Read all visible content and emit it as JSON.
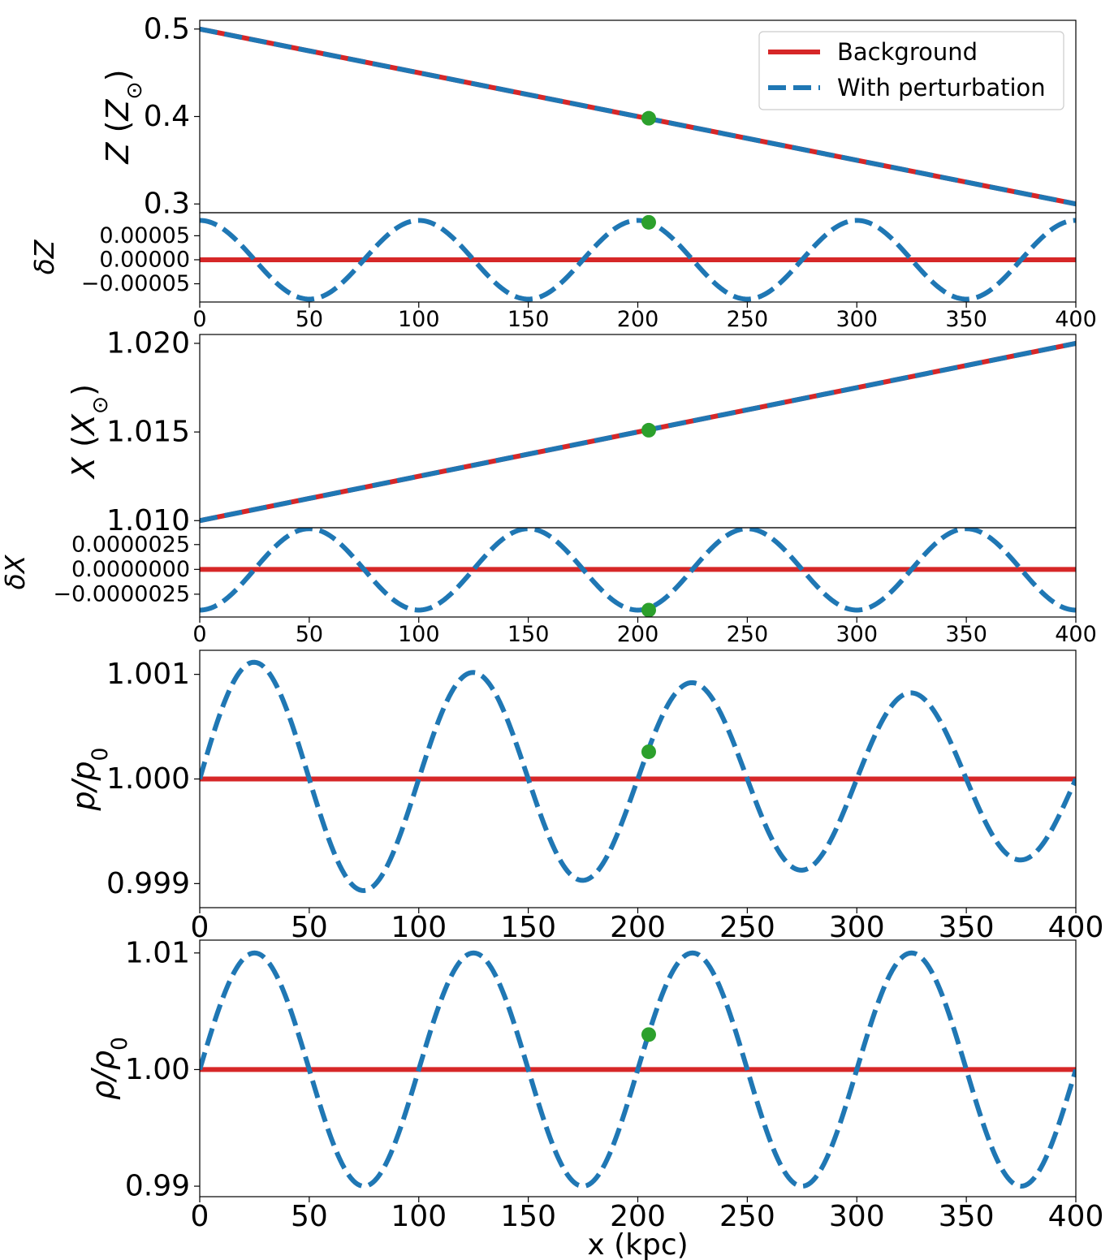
{
  "chart_data": [
    {
      "type": "line",
      "id": "Z",
      "ylabel_parts": [
        {
          "t": "Z",
          "i": true
        },
        {
          "t": " ("
        },
        {
          "t": "Z",
          "i": true
        },
        {
          "t": "⊙",
          "sub": true
        },
        {
          "t": ")"
        }
      ],
      "xlim": [
        0,
        400
      ],
      "ylim": [
        0.29,
        0.51
      ],
      "yticks": [
        0.5,
        0.4,
        0.3
      ],
      "ytick_labels": [
        "0.5",
        "0.4",
        "0.3"
      ],
      "series": [
        {
          "name": "Background",
          "color": "#d62728",
          "style": "solid",
          "x": [
            0,
            400
          ],
          "y": [
            0.5,
            0.3
          ]
        },
        {
          "name": "With perturbation",
          "color": "#1f77b4",
          "style": "dashed",
          "x": [
            0,
            400
          ],
          "y": [
            0.5,
            0.3
          ]
        }
      ],
      "marker": {
        "x": 205,
        "y": 0.398,
        "color": "#2ca02c"
      },
      "legend": {
        "position": "upper right",
        "entries": [
          "Background",
          "With perturbation"
        ]
      }
    },
    {
      "type": "line",
      "id": "dZ",
      "ylabel_parts": [
        {
          "t": "δZ",
          "i": true
        }
      ],
      "xlim": [
        0,
        400
      ],
      "ylim": [
        -8.8e-05,
        9.8e-05
      ],
      "yticks": [
        5e-05,
        0,
        -5e-05
      ],
      "ytick_labels": [
        "0.00005",
        "0.00000",
        "−0.00005"
      ],
      "xticks": [
        0,
        50,
        100,
        150,
        200,
        250,
        300,
        350,
        400
      ],
      "xtick_labels": [
        "0",
        "50",
        "100",
        "150",
        "200",
        "250",
        "300",
        "350",
        "400"
      ],
      "background": {
        "value": 0,
        "color": "#d62728"
      },
      "perturbation": {
        "kind": "cos",
        "amplitude": 8.2e-05,
        "wavelength": 100,
        "offset": 0,
        "color": "#1f77b4"
      },
      "marker": {
        "x": 205,
        "y": 7.8e-05,
        "color": "#2ca02c"
      }
    },
    {
      "type": "line",
      "id": "X",
      "ylabel_parts": [
        {
          "t": "X",
          "i": true
        },
        {
          "t": " ("
        },
        {
          "t": "X",
          "i": true
        },
        {
          "t": "⊙",
          "sub": true
        },
        {
          "t": ")"
        }
      ],
      "xlim": [
        0,
        400
      ],
      "ylim": [
        1.0096,
        1.0205
      ],
      "yticks": [
        1.02,
        1.015,
        1.01
      ],
      "ytick_labels": [
        "1.020",
        "1.015",
        "1.010"
      ],
      "series": [
        {
          "name": "Background",
          "color": "#d62728",
          "style": "solid",
          "x": [
            0,
            400
          ],
          "y": [
            1.01,
            1.02
          ]
        },
        {
          "name": "With perturbation",
          "color": "#1f77b4",
          "style": "dashed",
          "x": [
            0,
            400
          ],
          "y": [
            1.01,
            1.02
          ]
        }
      ],
      "marker": {
        "x": 205,
        "y": 1.0151,
        "color": "#2ca02c"
      }
    },
    {
      "type": "line",
      "id": "dX",
      "ylabel_parts": [
        {
          "t": "δX",
          "i": true
        }
      ],
      "xlim": [
        0,
        400
      ],
      "ylim": [
        -4.8e-06,
        4.2e-06
      ],
      "yticks": [
        2.5e-06,
        0,
        -2.5e-06
      ],
      "ytick_labels": [
        "0.0000025",
        "0.0000000",
        "−0.0000025"
      ],
      "xticks": [
        0,
        50,
        100,
        150,
        200,
        250,
        300,
        350,
        400
      ],
      "xtick_labels": [
        "0",
        "50",
        "100",
        "150",
        "200",
        "250",
        "300",
        "350",
        "400"
      ],
      "background": {
        "value": 0,
        "color": "#d62728"
      },
      "perturbation": {
        "kind": "cos",
        "amplitude": -4.1e-06,
        "wavelength": 100,
        "offset": 0,
        "color": "#1f77b4"
      },
      "marker": {
        "x": 205,
        "y": -4.1e-06,
        "color": "#2ca02c"
      }
    },
    {
      "type": "line",
      "id": "p",
      "ylabel_parts": [
        {
          "t": "p/p",
          "i": true
        },
        {
          "t": "0",
          "sub": true
        }
      ],
      "xlim": [
        0,
        400
      ],
      "ylim": [
        0.99877,
        1.00123
      ],
      "yticks": [
        1.001,
        1.0,
        0.999
      ],
      "ytick_labels": [
        "1.001",
        "1.000",
        "0.999"
      ],
      "xticks": [
        0,
        50,
        100,
        150,
        200,
        250,
        300,
        350,
        400
      ],
      "xtick_labels": [
        "0",
        "50",
        "100",
        "150",
        "200",
        "250",
        "300",
        "350",
        "400"
      ],
      "background": {
        "value": 1.0,
        "color": "#d62728"
      },
      "perturbation": {
        "kind": "sin_decay",
        "amplitude": 0.00114,
        "amplitude_end": 0.00075,
        "wavelength": 100,
        "offset": 1.0,
        "color": "#1f77b4"
      },
      "marker": {
        "x": 205,
        "y": 1.00026,
        "color": "#2ca02c"
      }
    },
    {
      "type": "line",
      "id": "rho",
      "ylabel_parts": [
        {
          "t": "ρ/ρ",
          "i": true
        },
        {
          "t": "0",
          "sub": true
        }
      ],
      "xlim": [
        0,
        400
      ],
      "ylim": [
        0.9891,
        1.0111
      ],
      "yticks": [
        1.01,
        1.0,
        0.99
      ],
      "ytick_labels": [
        "1.01",
        "1.00",
        "0.99"
      ],
      "xticks": [
        0,
        50,
        100,
        150,
        200,
        250,
        300,
        350,
        400
      ],
      "xtick_labels": [
        "0",
        "50",
        "100",
        "150",
        "200",
        "250",
        "300",
        "350",
        "400"
      ],
      "xlabel": "x (kpc)",
      "background": {
        "value": 1.0,
        "color": "#d62728"
      },
      "perturbation": {
        "kind": "sin",
        "amplitude": 0.01,
        "wavelength": 100,
        "offset": 1.0,
        "color": "#1f77b4"
      },
      "marker": {
        "x": 205,
        "y": 1.003,
        "color": "#2ca02c"
      }
    }
  ]
}
